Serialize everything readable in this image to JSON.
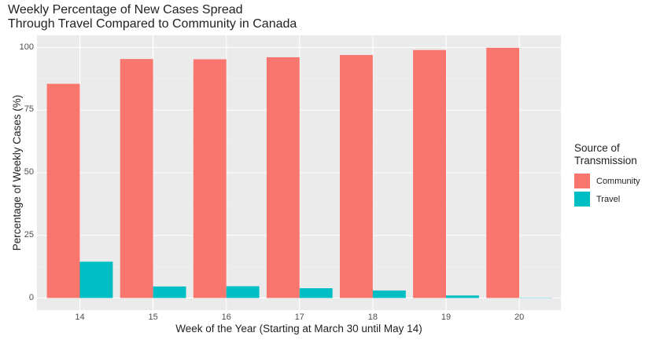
{
  "chart_data": {
    "type": "bar",
    "title_line1": "Weekly Percentage of New Cases Spread",
    "title_line2": "Through Travel Compared to Community in Canada",
    "xlabel": "Week of the Year (Starting at March 30 until May 14)",
    "ylabel": "Percentage of Weekly Cases (%)",
    "categories": [
      "14",
      "15",
      "16",
      "17",
      "18",
      "19",
      "20"
    ],
    "ylim": [
      0,
      100
    ],
    "yticks": [
      "0",
      "25",
      "50",
      "75",
      "100"
    ],
    "grid": true,
    "legend": {
      "title_line1": "Source of",
      "title_line2": "Transmission",
      "placement": "right"
    },
    "series": [
      {
        "name": "Community",
        "color": "#f8766d",
        "values": [
          85.5,
          95.4,
          95.3,
          96.1,
          97.0,
          99.0,
          99.9
        ]
      },
      {
        "name": "Travel",
        "color": "#00bfc4",
        "values": [
          14.5,
          4.6,
          4.7,
          3.9,
          3.0,
          1.0,
          0.1
        ]
      }
    ]
  }
}
